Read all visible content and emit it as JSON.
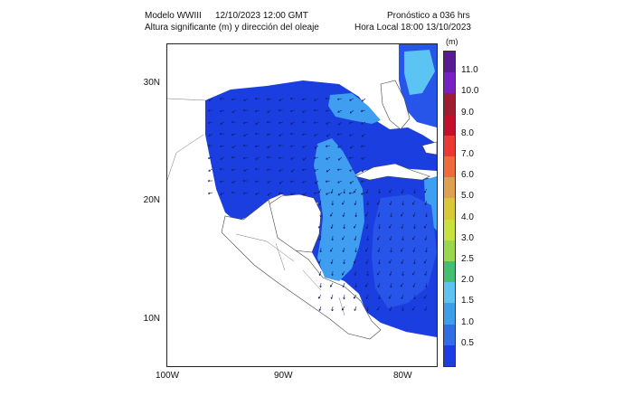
{
  "header": {
    "model": "Modelo WWIII",
    "datetime": "12/10/2023 12:00 GMT",
    "forecast": "Pronóstico a 036 hrs",
    "variable": "Altura significante (m) y dirección del oleaje",
    "local_time": "Hora Local 18:00 13/10/2023"
  },
  "map": {
    "lat_labels": [
      "30N",
      "20N",
      "10N"
    ],
    "lon_labels": [
      "100W",
      "90W",
      "80W"
    ],
    "land_color": "#ffffff",
    "sea_colors": {
      "dark": "#1b3ee0",
      "mid": "#2755ea",
      "light": "#3f9ef0",
      "lighter": "#5cc4f2"
    }
  },
  "colorbar": {
    "unit": "(m)",
    "levels": [
      "11.0",
      "10.0",
      "9.0",
      "8.0",
      "7.0",
      "6.0",
      "5.0",
      "4.0",
      "3.0",
      "2.5",
      "2.0",
      "1.5",
      "1.0",
      "0.5"
    ],
    "colors": [
      "#5a1a96",
      "#7a1fc8",
      "#a01c30",
      "#c0102a",
      "#e83a2e",
      "#f06a3a",
      "#e0a050",
      "#d8c838",
      "#c8e040",
      "#9ad84a",
      "#40c070",
      "#5cc4f2",
      "#3aa0ee",
      "#2f6ee8",
      "#1b3ee0"
    ]
  }
}
